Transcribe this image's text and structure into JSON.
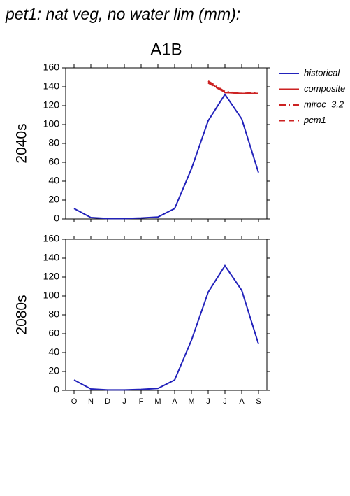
{
  "chart_data": [
    {
      "type": "line",
      "title": "pet1: nat veg, no water lim (mm):",
      "subtitle": "A1B",
      "ylabel": "2040s",
      "ylim": [
        0,
        160
      ],
      "yticks": [
        0,
        20,
        40,
        60,
        80,
        100,
        120,
        140,
        160
      ],
      "series": [
        {
          "name": "historical",
          "color": "#2222bb",
          "style": "solid",
          "values": [
            11,
            1.5,
            0.5,
            0.5,
            1,
            2,
            11,
            53,
            104,
            132,
            106,
            49
          ]
        },
        {
          "name": "composite",
          "color": "#cc2222",
          "style": "solid",
          "values": [
            null,
            null,
            null,
            null,
            null,
            null,
            null,
            null,
            145,
            134,
            133,
            133
          ]
        },
        {
          "name": "miroc_3.2",
          "color": "#cc2222",
          "style": "dash-dot",
          "values": [
            null,
            null,
            null,
            null,
            null,
            null,
            null,
            null,
            146,
            135,
            133,
            134
          ]
        },
        {
          "name": "pcm1",
          "color": "#cc2222",
          "style": "dash",
          "values": [
            null,
            null,
            null,
            null,
            null,
            null,
            null,
            null,
            144,
            134,
            133,
            133
          ]
        }
      ]
    },
    {
      "type": "line",
      "ylabel": "2080s",
      "categories": [
        "O",
        "N",
        "D",
        "J",
        "F",
        "M",
        "A",
        "M",
        "J",
        "J",
        "A",
        "S"
      ],
      "ylim": [
        0,
        160
      ],
      "yticks": [
        0,
        20,
        40,
        60,
        80,
        100,
        120,
        140,
        160
      ],
      "series": [
        {
          "name": "historical",
          "color": "#2222bb",
          "style": "solid",
          "values": [
            11,
            1.5,
            0.5,
            0.5,
            1,
            2,
            11,
            53,
            104,
            132,
            106,
            49
          ]
        }
      ]
    }
  ]
}
